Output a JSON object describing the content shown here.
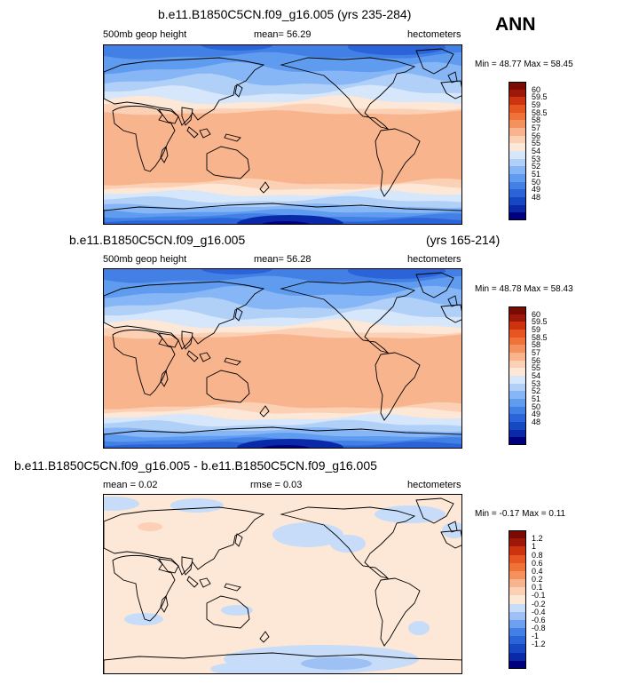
{
  "header": {
    "season": "ANN"
  },
  "colors": {
    "abs": [
      "#00007f",
      "#0a29a8",
      "#1748c4",
      "#2a64d8",
      "#4280e6",
      "#5f9cf0",
      "#86b6f5",
      "#b0d0f8",
      "#d6e6fb",
      "#fde7d6",
      "#fbd0b5",
      "#f8b48d",
      "#f4915f",
      "#ef7339",
      "#e65522",
      "#cc3410",
      "#9d1808",
      "#7a0b02"
    ],
    "diff": [
      "#00007f",
      "#0a29a8",
      "#1748c4",
      "#2a64d8",
      "#4280e6",
      "#6e9ff0",
      "#9dc0f5",
      "#c6dcf9",
      "#fde7d6",
      "#fbd0b5",
      "#f8b48d",
      "#f4915f",
      "#ef7339",
      "#e65522",
      "#cc3410",
      "#9d1808",
      "#7a0b02"
    ],
    "land": "#000000"
  },
  "panels": [
    {
      "title": "b.e11.B1850C5CN.f09_g16.005 (yrs 235-284)",
      "title2": "",
      "field": "500mb geop height",
      "stat_label": "mean=",
      "stat_value": "56.29",
      "units": "hectometers",
      "min_label": "Min =",
      "min_value": "48.77",
      "max_label": "Max =",
      "max_value": "58.45",
      "levels": [
        "60",
        "59.5",
        "59",
        "58.5",
        "58",
        "57",
        "56",
        "55",
        "54",
        "53",
        "52",
        "51",
        "50",
        "49",
        "48"
      ],
      "field_summary": {
        "tropics": 58.0,
        "midlat_nh": 55.5,
        "high_nh": 52.0,
        "midlat_sh": 55.0,
        "polar_sh": 48.8
      }
    },
    {
      "title": "b.e11.B1850C5CN.f09_g16.005",
      "title2": "(yrs 165-214)",
      "field": "500mb geop height",
      "stat_label": "mean=",
      "stat_value": "56.28",
      "units": "hectometers",
      "min_label": "Min =",
      "min_value": "48.78",
      "max_label": "Max =",
      "max_value": "58.43",
      "levels": [
        "60",
        "59.5",
        "59",
        "58.5",
        "58",
        "57",
        "56",
        "55",
        "54",
        "53",
        "52",
        "51",
        "50",
        "49",
        "48"
      ],
      "field_summary": {
        "tropics": 58.0,
        "midlat_nh": 55.5,
        "high_nh": 52.0,
        "midlat_sh": 55.0,
        "polar_sh": 48.8
      }
    },
    {
      "title": "b.e11.B1850C5CN.f09_g16.005 - b.e11.B1850C5CN.f09_g16.005",
      "title2": "",
      "field": "",
      "stat_label": "mean =",
      "stat_value": "0.02",
      "stat2_label": "rmse =",
      "stat2_value": "0.03",
      "units": "hectometers",
      "min_label": "Min =",
      "min_value": "-0.17",
      "max_label": "Max =",
      "max_value": "0.11",
      "levels": [
        "1.2",
        "1",
        "0.8",
        "0.6",
        "0.4",
        "0.2",
        "0.1",
        "-0.1",
        "-0.2",
        "-0.4",
        "-0.6",
        "-0.8",
        "-1",
        "-1.2"
      ],
      "field_summary": {
        "background": 0.03,
        "patches": -0.05,
        "antarctic": -0.1
      }
    }
  ],
  "chart_data": [
    {
      "type": "heatmap",
      "title": "b.e11.B1850C5CN.f09_g16.005 (yrs 235-284)",
      "variable": "500mb geop height",
      "units": "hectometers",
      "mean": 56.29,
      "min": 48.77,
      "max": 58.45,
      "contour_levels": [
        48,
        49,
        50,
        51,
        52,
        53,
        54,
        55,
        56,
        57,
        58,
        58.5,
        59,
        59.5,
        60
      ],
      "zonal_profile": {
        "lat": [
          90,
          70,
          60,
          50,
          40,
          30,
          20,
          0,
          -20,
          -30,
          -40,
          -50,
          -60,
          -70,
          -90
        ],
        "value": [
          51,
          52,
          53.5,
          54.5,
          55.8,
          57.2,
          58,
          58.2,
          58,
          57.2,
          55.8,
          54,
          51.5,
          50,
          48.8
        ]
      }
    },
    {
      "type": "heatmap",
      "title": "b.e11.B1850C5CN.f09_g16.005 (yrs 165-214)",
      "variable": "500mb geop height",
      "units": "hectometers",
      "mean": 56.28,
      "min": 48.78,
      "max": 58.43,
      "contour_levels": [
        48,
        49,
        50,
        51,
        52,
        53,
        54,
        55,
        56,
        57,
        58,
        58.5,
        59,
        59.5,
        60
      ],
      "zonal_profile": {
        "lat": [
          90,
          70,
          60,
          50,
          40,
          30,
          20,
          0,
          -20,
          -30,
          -40,
          -50,
          -60,
          -70,
          -90
        ],
        "value": [
          51,
          52,
          53.5,
          54.5,
          55.8,
          57.2,
          58,
          58.2,
          58,
          57.2,
          55.8,
          54,
          51.5,
          50,
          48.8
        ]
      }
    },
    {
      "type": "heatmap",
      "title": "b.e11.B1850C5CN.f09_g16.005 - b.e11.B1850C5CN.f09_g16.005",
      "units": "hectometers",
      "mean": 0.02,
      "rmse": 0.03,
      "min": -0.17,
      "max": 0.11,
      "contour_levels": [
        -1.2,
        -1,
        -0.8,
        -0.6,
        -0.4,
        -0.2,
        -0.1,
        0.1,
        0.2,
        0.4,
        0.6,
        0.8,
        1,
        1.2
      ]
    }
  ]
}
